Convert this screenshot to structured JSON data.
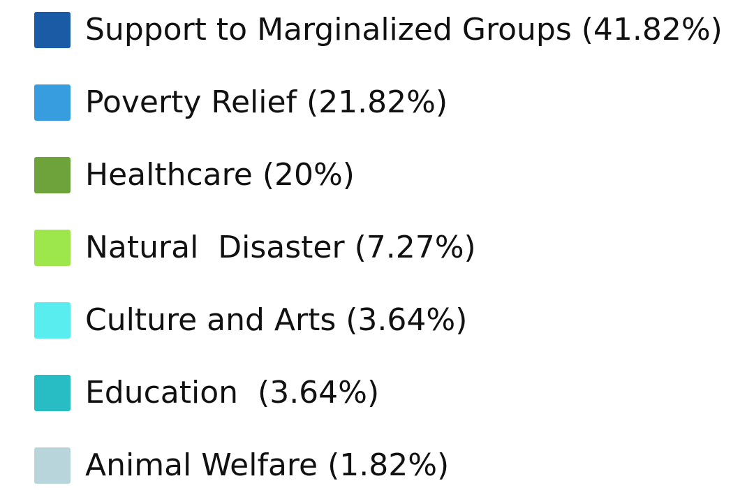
{
  "legend": {
    "items": [
      {
        "label": "Support to Marginalized Groups (41.82%)",
        "color": "#1b5ba6"
      },
      {
        "label": "Poverty Relief (21.82%)",
        "color": "#389ddf"
      },
      {
        "label": "Healthcare (20%)",
        "color": "#6ea23a"
      },
      {
        "label": "Natural  Disaster (7.27%)",
        "color": "#9de64b"
      },
      {
        "label": "Culture and Arts (3.64%)",
        "color": "#5aedf0"
      },
      {
        "label": "Education  (3.64%)",
        "color": "#28bcc5"
      },
      {
        "label": "Animal Welfare (1.82%)",
        "color": "#b8d5db"
      }
    ]
  }
}
